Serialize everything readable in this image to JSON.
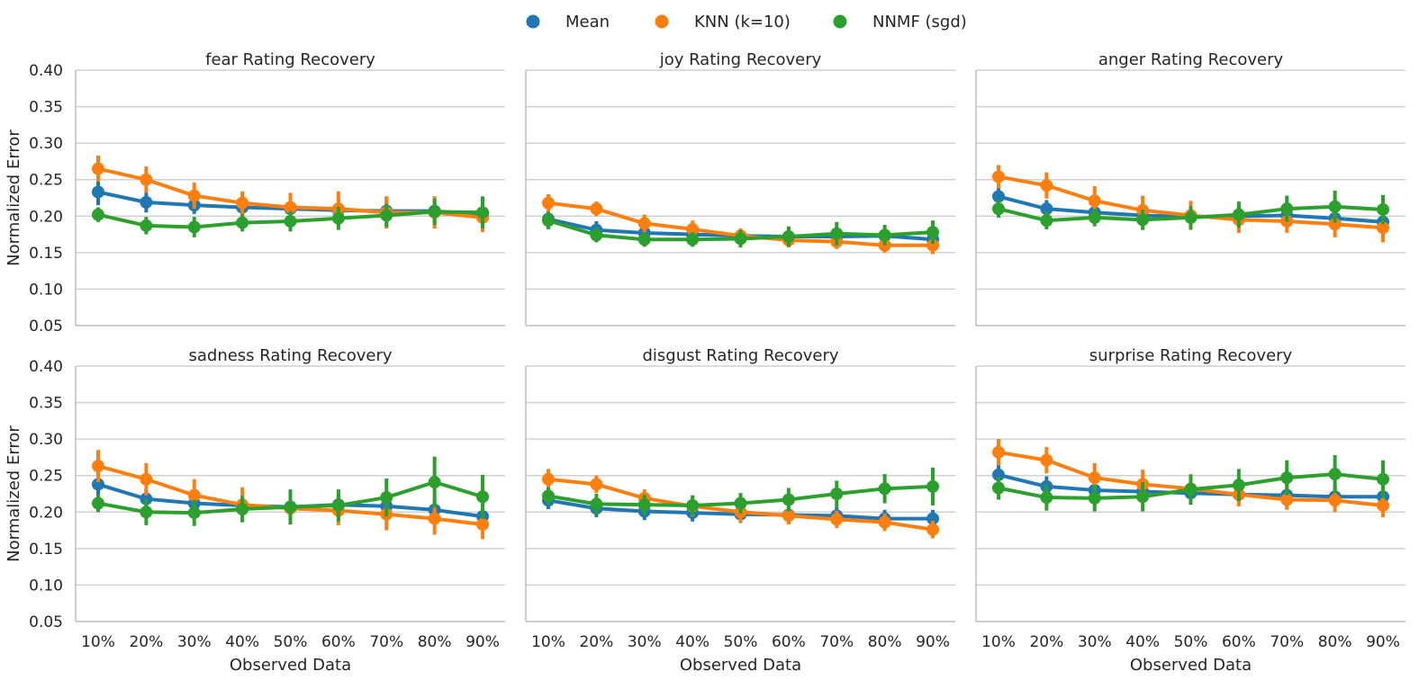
{
  "chart_data": {
    "type": "line",
    "ylabel": "Normalized Error",
    "xlabel": "Observed Data",
    "x": [
      "10%",
      "20%",
      "30%",
      "40%",
      "50%",
      "60%",
      "70%",
      "80%",
      "90%"
    ],
    "ylim": [
      0.05,
      0.4
    ],
    "yticks": [
      "0.05",
      "0.10",
      "0.15",
      "0.20",
      "0.25",
      "0.30",
      "0.35",
      "0.40"
    ],
    "grid": "horizontal",
    "legend": {
      "placement": "top-center",
      "entries": [
        {
          "name": "Mean",
          "color": "#1f77b4"
        },
        {
          "name": "KNN (k=10)",
          "color": "#ff7f0e"
        },
        {
          "name": "NNMF (sgd)",
          "color": "#2ca02c"
        }
      ]
    },
    "panels": [
      {
        "title": "fear Rating Recovery",
        "series": [
          {
            "name": "Mean",
            "values": [
              0.233,
              0.219,
              0.215,
              0.212,
              0.21,
              0.208,
              0.207,
              0.207,
              0.202
            ],
            "errors": [
              0.018,
              0.014,
              0.012,
              0.012,
              0.014,
              0.016,
              0.02,
              0.02,
              0.02
            ]
          },
          {
            "name": "KNN (k=10)",
            "values": [
              0.265,
              0.25,
              0.228,
              0.218,
              0.212,
              0.21,
              0.205,
              0.205,
              0.198
            ],
            "errors": [
              0.018,
              0.018,
              0.018,
              0.016,
              0.02,
              0.024,
              0.022,
              0.022,
              0.02
            ]
          },
          {
            "name": "NNMF (sgd)",
            "values": [
              0.202,
              0.187,
              0.185,
              0.191,
              0.193,
              0.197,
              0.201,
              0.206,
              0.205
            ],
            "errors": [
              0.01,
              0.012,
              0.014,
              0.012,
              0.014,
              0.016,
              0.016,
              0.018,
              0.022
            ]
          }
        ]
      },
      {
        "title": "joy Rating Recovery",
        "series": [
          {
            "name": "Mean",
            "values": [
              0.196,
              0.181,
              0.177,
              0.175,
              0.173,
              0.172,
              0.172,
              0.173,
              0.168
            ],
            "errors": [
              0.012,
              0.012,
              0.01,
              0.01,
              0.01,
              0.012,
              0.01,
              0.01,
              0.01
            ]
          },
          {
            "name": "KNN (k=10)",
            "values": [
              0.218,
              0.21,
              0.19,
              0.182,
              0.173,
              0.167,
              0.165,
              0.16,
              0.16
            ],
            "errors": [
              0.012,
              0.01,
              0.012,
              0.012,
              0.01,
              0.01,
              0.01,
              0.01,
              0.012
            ]
          },
          {
            "name": "NNMF (sgd)",
            "values": [
              0.194,
              0.174,
              0.168,
              0.168,
              0.169,
              0.172,
              0.176,
              0.174,
              0.178
            ],
            "errors": [
              0.012,
              0.01,
              0.01,
              0.01,
              0.012,
              0.014,
              0.016,
              0.014,
              0.016
            ]
          }
        ]
      },
      {
        "title": "anger Rating Recovery",
        "series": [
          {
            "name": "Mean",
            "values": [
              0.227,
              0.21,
              0.205,
              0.201,
              0.199,
              0.2,
              0.201,
              0.197,
              0.192
            ],
            "errors": [
              0.012,
              0.012,
              0.012,
              0.012,
              0.012,
              0.014,
              0.014,
              0.014,
              0.014
            ]
          },
          {
            "name": "KNN (k=10)",
            "values": [
              0.254,
              0.242,
              0.221,
              0.208,
              0.201,
              0.195,
              0.193,
              0.189,
              0.184
            ],
            "errors": [
              0.016,
              0.018,
              0.02,
              0.02,
              0.02,
              0.018,
              0.016,
              0.018,
              0.02
            ]
          },
          {
            "name": "NNMF (sgd)",
            "values": [
              0.21,
              0.194,
              0.198,
              0.195,
              0.198,
              0.202,
              0.21,
              0.213,
              0.209
            ],
            "errors": [
              0.012,
              0.012,
              0.012,
              0.014,
              0.016,
              0.018,
              0.018,
              0.022,
              0.02
            ]
          }
        ]
      },
      {
        "title": "sadness Rating Recovery",
        "series": [
          {
            "name": "Mean",
            "values": [
              0.238,
              0.218,
              0.212,
              0.209,
              0.207,
              0.21,
              0.208,
              0.203,
              0.194
            ],
            "errors": [
              0.016,
              0.014,
              0.014,
              0.014,
              0.014,
              0.014,
              0.016,
              0.016,
              0.016
            ]
          },
          {
            "name": "KNN (k=10)",
            "values": [
              0.263,
              0.245,
              0.223,
              0.21,
              0.205,
              0.202,
              0.197,
              0.191,
              0.183
            ],
            "errors": [
              0.022,
              0.022,
              0.022,
              0.024,
              0.022,
              0.02,
              0.022,
              0.022,
              0.02
            ]
          },
          {
            "name": "NNMF (sgd)",
            "values": [
              0.212,
              0.2,
              0.199,
              0.204,
              0.207,
              0.209,
              0.22,
              0.241,
              0.221
            ],
            "errors": [
              0.012,
              0.018,
              0.018,
              0.018,
              0.024,
              0.022,
              0.026,
              0.035,
              0.03
            ]
          }
        ]
      },
      {
        "title": "disgust Rating Recovery",
        "series": [
          {
            "name": "Mean",
            "values": [
              0.216,
              0.205,
              0.201,
              0.199,
              0.197,
              0.196,
              0.195,
              0.191,
              0.191
            ],
            "errors": [
              0.012,
              0.012,
              0.012,
              0.012,
              0.012,
              0.012,
              0.012,
              0.012,
              0.012
            ]
          },
          {
            "name": "KNN (k=10)",
            "values": [
              0.245,
              0.238,
              0.219,
              0.208,
              0.2,
              0.195,
              0.19,
              0.186,
              0.176
            ],
            "errors": [
              0.014,
              0.012,
              0.012,
              0.014,
              0.014,
              0.012,
              0.012,
              0.012,
              0.012
            ]
          },
          {
            "name": "NNMF (sgd)",
            "values": [
              0.222,
              0.211,
              0.21,
              0.209,
              0.212,
              0.217,
              0.225,
              0.232,
              0.235
            ],
            "errors": [
              0.012,
              0.014,
              0.014,
              0.014,
              0.014,
              0.016,
              0.018,
              0.02,
              0.026
            ]
          }
        ]
      },
      {
        "title": "surprise Rating Recovery",
        "series": [
          {
            "name": "Mean",
            "values": [
              0.251,
              0.235,
              0.23,
              0.228,
              0.226,
              0.224,
              0.223,
              0.221,
              0.221
            ],
            "errors": [
              0.016,
              0.014,
              0.014,
              0.014,
              0.016,
              0.016,
              0.016,
              0.016,
              0.016
            ]
          },
          {
            "name": "KNN (k=10)",
            "values": [
              0.282,
              0.271,
              0.247,
              0.238,
              0.232,
              0.224,
              0.217,
              0.216,
              0.209
            ],
            "errors": [
              0.018,
              0.018,
              0.02,
              0.02,
              0.02,
              0.016,
              0.014,
              0.016,
              0.016
            ]
          },
          {
            "name": "NNMF (sgd)",
            "values": [
              0.233,
              0.22,
              0.219,
              0.221,
              0.231,
              0.237,
              0.247,
              0.252,
              0.245
            ],
            "errors": [
              0.016,
              0.018,
              0.018,
              0.02,
              0.02,
              0.022,
              0.024,
              0.026,
              0.026
            ]
          }
        ]
      }
    ]
  }
}
